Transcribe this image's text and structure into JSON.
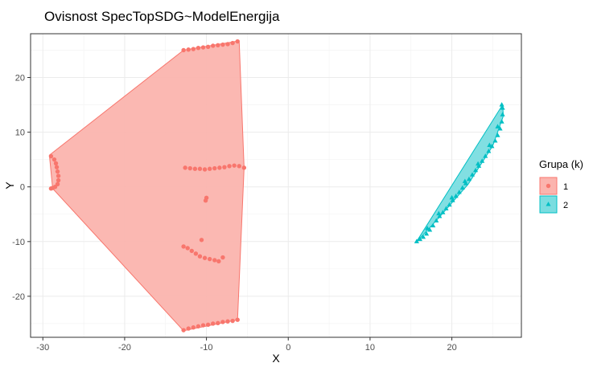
{
  "chart_data": {
    "type": "scatter",
    "title": "Ovisnost SpecTopSDG~ModelEnergija",
    "xlabel": "X",
    "ylabel": "Y",
    "xlim": [
      -31.5,
      28.5
    ],
    "ylim": [
      -27.5,
      28
    ],
    "x_ticks": [
      -30,
      -20,
      -10,
      0,
      10,
      20
    ],
    "y_ticks": [
      -20,
      -10,
      0,
      10,
      20
    ],
    "grid": true,
    "legend": {
      "title": "Grupa (k)",
      "position": "right"
    },
    "series": [
      {
        "name": "1",
        "color": "#F8766D",
        "fill": "#FBB4AE",
        "shape": "circle",
        "hull": [
          [
            -29.2,
            5.8
          ],
          [
            -28.8,
            -0.3
          ],
          [
            -12.8,
            -26.3
          ],
          [
            -6.2,
            -24.3
          ],
          [
            -5.4,
            3.5
          ],
          [
            -6.0,
            26.7
          ],
          [
            -12.8,
            25.0
          ]
        ],
        "points": [
          [
            -29.0,
            5.6
          ],
          [
            -28.6,
            5.0
          ],
          [
            -28.4,
            4.3
          ],
          [
            -28.3,
            3.6
          ],
          [
            -28.2,
            2.8
          ],
          [
            -28.1,
            2.0
          ],
          [
            -28.1,
            1.2
          ],
          [
            -28.2,
            0.5
          ],
          [
            -28.5,
            0.0
          ],
          [
            -28.8,
            -0.2
          ],
          [
            -29.0,
            -0.3
          ],
          [
            -12.8,
            25.0
          ],
          [
            -12.2,
            25.1
          ],
          [
            -11.6,
            25.2
          ],
          [
            -11.0,
            25.4
          ],
          [
            -10.4,
            25.5
          ],
          [
            -9.8,
            25.6
          ],
          [
            -9.2,
            25.8
          ],
          [
            -8.6,
            25.9
          ],
          [
            -8.0,
            26.0
          ],
          [
            -7.4,
            26.1
          ],
          [
            -6.8,
            26.3
          ],
          [
            -6.2,
            26.6
          ],
          [
            -12.6,
            3.5
          ],
          [
            -12.0,
            3.4
          ],
          [
            -11.4,
            3.3
          ],
          [
            -10.8,
            3.3
          ],
          [
            -10.2,
            3.2
          ],
          [
            -9.6,
            3.3
          ],
          [
            -9.0,
            3.4
          ],
          [
            -8.4,
            3.5
          ],
          [
            -7.8,
            3.6
          ],
          [
            -7.2,
            3.8
          ],
          [
            -6.6,
            3.9
          ],
          [
            -6.0,
            3.8
          ],
          [
            -5.4,
            3.5
          ],
          [
            -10.0,
            -2.0
          ],
          [
            -10.1,
            -2.5
          ],
          [
            -10.6,
            -9.7
          ],
          [
            -12.8,
            -10.9
          ],
          [
            -12.3,
            -11.2
          ],
          [
            -11.8,
            -11.7
          ],
          [
            -11.3,
            -12.2
          ],
          [
            -10.8,
            -12.7
          ],
          [
            -10.2,
            -13.0
          ],
          [
            -9.6,
            -13.2
          ],
          [
            -9.0,
            -13.4
          ],
          [
            -8.5,
            -13.6
          ],
          [
            -8.0,
            -12.9
          ],
          [
            -12.8,
            -26.2
          ],
          [
            -12.2,
            -25.9
          ],
          [
            -11.6,
            -25.7
          ],
          [
            -11.0,
            -25.5
          ],
          [
            -10.4,
            -25.3
          ],
          [
            -9.8,
            -25.2
          ],
          [
            -9.2,
            -25.0
          ],
          [
            -8.6,
            -24.9
          ],
          [
            -8.0,
            -24.7
          ],
          [
            -7.4,
            -24.6
          ],
          [
            -6.8,
            -24.5
          ],
          [
            -6.2,
            -24.3
          ]
        ]
      },
      {
        "name": "2",
        "color": "#00BFC4",
        "fill": "#7ADDE0",
        "shape": "triangle",
        "hull": [
          [
            15.6,
            -10.2
          ],
          [
            26.2,
            15.0
          ],
          [
            26.3,
            13.0
          ],
          [
            25.0,
            7.5
          ],
          [
            22.0,
            0.5
          ],
          [
            18.5,
            -5.5
          ]
        ],
        "points": [
          [
            15.7,
            -10.0
          ],
          [
            16.1,
            -9.6
          ],
          [
            16.5,
            -9.2
          ],
          [
            16.9,
            -8.6
          ],
          [
            17.3,
            -7.9
          ],
          [
            17.7,
            -7.1
          ],
          [
            18.1,
            -6.2
          ],
          [
            18.5,
            -5.4
          ],
          [
            18.9,
            -4.7
          ],
          [
            19.3,
            -4.0
          ],
          [
            19.7,
            -3.3
          ],
          [
            20.1,
            -2.5
          ],
          [
            20.5,
            -1.7
          ],
          [
            20.9,
            -1.0
          ],
          [
            21.3,
            -0.2
          ],
          [
            21.7,
            0.6
          ],
          [
            22.1,
            1.4
          ],
          [
            22.5,
            2.2
          ],
          [
            22.9,
            3.0
          ],
          [
            23.3,
            3.8
          ],
          [
            23.7,
            4.7
          ],
          [
            24.1,
            5.6
          ],
          [
            24.5,
            6.5
          ],
          [
            24.9,
            7.4
          ],
          [
            25.3,
            8.4
          ],
          [
            25.6,
            9.4
          ],
          [
            25.9,
            10.6
          ],
          [
            26.1,
            11.9
          ],
          [
            26.2,
            13.2
          ],
          [
            26.2,
            14.4
          ],
          [
            26.1,
            15.0
          ],
          [
            17.0,
            -7.6
          ],
          [
            18.4,
            -4.9
          ],
          [
            20.0,
            -2.0
          ],
          [
            21.6,
            1.0
          ],
          [
            23.2,
            4.2
          ],
          [
            24.6,
            7.6
          ],
          [
            25.6,
            11.0
          ]
        ]
      }
    ]
  }
}
